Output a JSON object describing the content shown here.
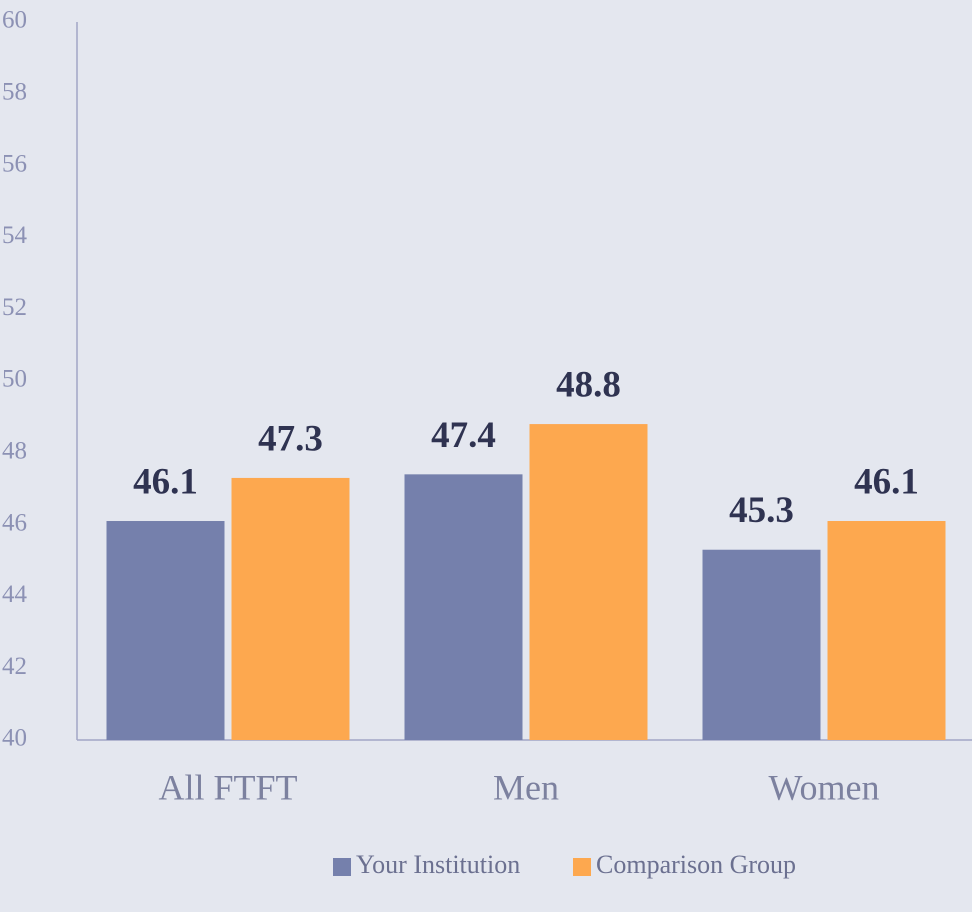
{
  "chart_data": {
    "type": "bar",
    "categories": [
      "All FTFT",
      "Men",
      "Women"
    ],
    "series": [
      {
        "name": "Your Institution",
        "color": "#7580ac",
        "values": [
          46.1,
          47.4,
          45.3
        ]
      },
      {
        "name": "Comparison Group",
        "color": "#fda84f",
        "values": [
          47.3,
          48.8,
          46.1
        ]
      }
    ],
    "ylim": [
      40,
      60
    ],
    "yticks": [
      40,
      42,
      44,
      46,
      48,
      50,
      52,
      54,
      56,
      58,
      60
    ],
    "grid": false,
    "legend": "bottom"
  }
}
